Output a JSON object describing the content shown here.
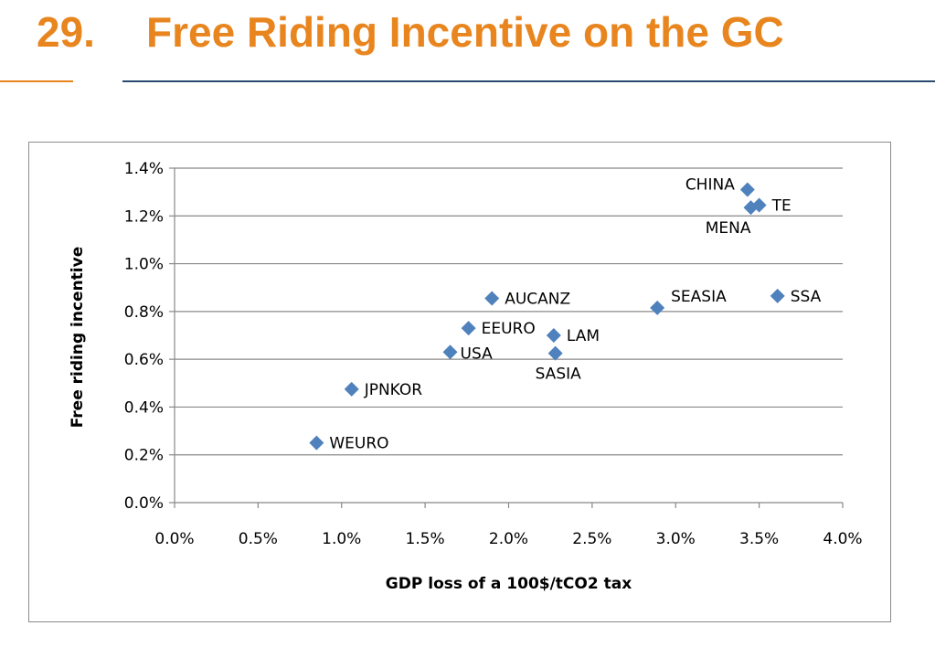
{
  "slide": {
    "number": "29.",
    "title": "Free Riding Incentive on the GC"
  },
  "colors": {
    "title": "#e8851e",
    "rule_left": "#e8851e",
    "rule_right": "#2b4a6f",
    "marker": "#4f81bd",
    "grid": "#888888"
  },
  "chart_data": {
    "type": "scatter",
    "title": "",
    "xlabel": "GDP loss of a 100$/tCO2 tax",
    "ylabel": "Free riding incentive",
    "xlim": [
      0,
      4.0
    ],
    "ylim": [
      0,
      1.4
    ],
    "x_ticks": [
      {
        "value": 0.0,
        "label": "0.0%"
      },
      {
        "value": 0.5,
        "label": "0.5%"
      },
      {
        "value": 1.0,
        "label": "1.0%"
      },
      {
        "value": 1.5,
        "label": "1.5%"
      },
      {
        "value": 2.0,
        "label": "2.0%"
      },
      {
        "value": 2.5,
        "label": "2.5%"
      },
      {
        "value": 3.0,
        "label": "3.0%"
      },
      {
        "value": 3.5,
        "label": "3.5%"
      },
      {
        "value": 4.0,
        "label": "4.0%"
      }
    ],
    "y_ticks": [
      {
        "value": 0.0,
        "label": "0.0%"
      },
      {
        "value": 0.2,
        "label": "0.2%"
      },
      {
        "value": 0.4,
        "label": "0.4%"
      },
      {
        "value": 0.6,
        "label": "0.6%"
      },
      {
        "value": 0.8,
        "label": "0.8%"
      },
      {
        "value": 1.0,
        "label": "1.0%"
      },
      {
        "value": 1.2,
        "label": "1.2%"
      },
      {
        "value": 1.4,
        "label": "1.4%"
      }
    ],
    "grid": "horizontal",
    "legend": "none",
    "points": [
      {
        "label": "CHINA",
        "x": 3.43,
        "y": 1.31,
        "label_side": "left"
      },
      {
        "label": "TE",
        "x": 3.5,
        "y": 1.245,
        "label_side": "right"
      },
      {
        "label": "MENA",
        "x": 3.45,
        "y": 1.235,
        "label_side": "below-left"
      },
      {
        "label": "AUCANZ",
        "x": 1.9,
        "y": 0.855,
        "label_side": "right"
      },
      {
        "label": "SEASIA",
        "x": 2.89,
        "y": 0.815,
        "label_side": "above-right"
      },
      {
        "label": "SSA",
        "x": 3.61,
        "y": 0.865,
        "label_side": "right"
      },
      {
        "label": "EEURO",
        "x": 1.76,
        "y": 0.73,
        "label_side": "right"
      },
      {
        "label": "LAM",
        "x": 2.27,
        "y": 0.7,
        "label_side": "right"
      },
      {
        "label": "USA",
        "x": 1.65,
        "y": 0.63,
        "label_side": "right-tight"
      },
      {
        "label": "SASIA",
        "x": 2.28,
        "y": 0.625,
        "label_side": "below"
      },
      {
        "label": "JPNKOR",
        "x": 1.06,
        "y": 0.475,
        "label_side": "right"
      },
      {
        "label": "WEURO",
        "x": 0.85,
        "y": 0.25,
        "label_side": "right"
      }
    ]
  }
}
